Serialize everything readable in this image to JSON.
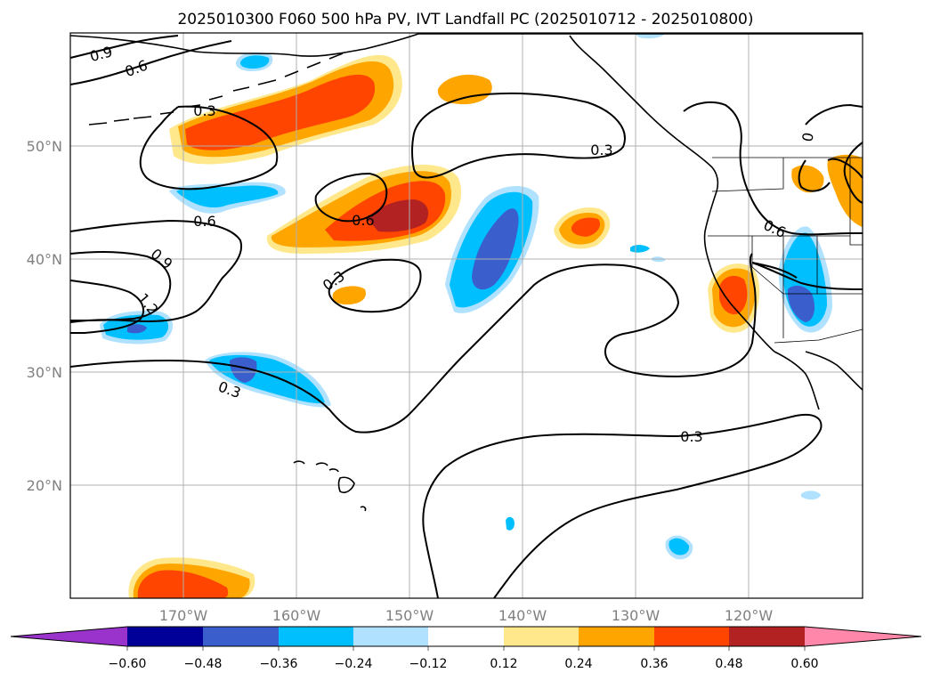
{
  "title": "2025010300 F060 500 hPa PV, IVT Landfall PC (2025010712 - 2025010800)",
  "map": {
    "lon_range": [
      -180,
      -110
    ],
    "lat_range": [
      10,
      60
    ],
    "lat_ticks": [
      "20°N",
      "30°N",
      "40°N",
      "50°N"
    ],
    "lon_ticks": [
      "170°W",
      "160°W",
      "150°W",
      "140°W",
      "130°W",
      "120°W"
    ],
    "contour_labels": [
      "0.9",
      "0.6",
      "0.3",
      "0.3",
      "0.6",
      "0.9",
      "1.2",
      "0.3",
      "0.6",
      "0.3",
      "0.3",
      "0.6",
      "0"
    ],
    "grid": "on"
  },
  "colorbar": {
    "labels": [
      "−0.60",
      "−0.48",
      "−0.36",
      "−0.24",
      "−0.12",
      "0.12",
      "0.24",
      "0.36",
      "0.48",
      "0.60"
    ],
    "colors": [
      "#9933cc",
      "#000099",
      "#3a5fcd",
      "#00bfff",
      "#b0e2ff",
      "#ffffff",
      "#ffe88c",
      "#ffa500",
      "#ff4500",
      "#b22222",
      "#ff88aa"
    ]
  },
  "colors": {
    "light_yellow": "#ffe88c",
    "orange": "#ffa500",
    "red_orange": "#ff4500",
    "dark_red": "#b22222",
    "light_blue": "#b0e2ff",
    "cyan": "#00bfff",
    "royal_blue": "#3a5fcd"
  }
}
